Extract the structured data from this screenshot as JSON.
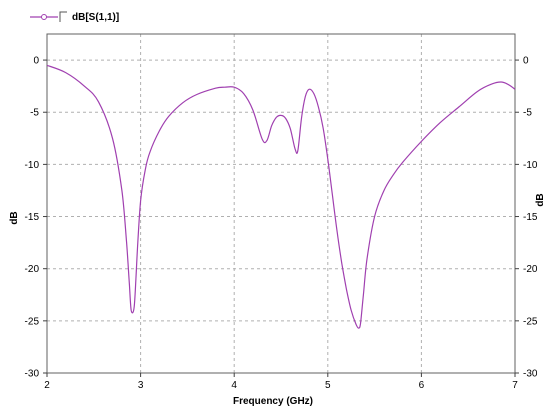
{
  "chart_data": {
    "type": "line",
    "title": "",
    "xlabel": "Frequency (GHz)",
    "ylabel": "dB",
    "ylabel_right": "dB",
    "xlim": [
      2,
      7
    ],
    "ylim": [
      -30,
      2.5
    ],
    "xticks": [
      "2",
      "3",
      "4",
      "5",
      "6",
      "7"
    ],
    "yticks": [
      "0",
      "-5",
      "-10",
      "-15",
      "-20",
      "-25",
      "-30"
    ],
    "grid": true,
    "legend_placement": "top-left",
    "colors": {
      "series": "#a040b0",
      "grid": "#b0b0b0",
      "frame": "#606060"
    },
    "series": [
      {
        "name": "dB[S(1,1)]",
        "x": [
          2.0,
          2.2,
          2.4,
          2.55,
          2.7,
          2.8,
          2.85,
          2.88,
          2.9,
          2.93,
          2.95,
          2.97,
          3.0,
          3.05,
          3.1,
          3.2,
          3.3,
          3.45,
          3.6,
          3.8,
          3.9,
          4.0,
          4.1,
          4.2,
          4.3,
          4.35,
          4.4,
          4.45,
          4.5,
          4.55,
          4.6,
          4.65,
          4.68,
          4.72,
          4.76,
          4.8,
          4.85,
          4.9,
          4.95,
          5.0,
          5.05,
          5.1,
          5.15,
          5.2,
          5.25,
          5.3,
          5.33,
          5.35,
          5.38,
          5.42,
          5.5,
          5.6,
          5.7,
          5.8,
          6.0,
          6.2,
          6.4,
          6.6,
          6.75,
          6.85,
          6.92,
          7.0
        ],
        "y": [
          -0.5,
          -1.2,
          -2.5,
          -4.0,
          -7.5,
          -12.5,
          -17.5,
          -21.5,
          -24.0,
          -23.8,
          -21.0,
          -17.5,
          -13.5,
          -10.5,
          -8.8,
          -6.8,
          -5.4,
          -4.1,
          -3.3,
          -2.7,
          -2.6,
          -2.6,
          -3.2,
          -4.8,
          -7.6,
          -7.7,
          -6.3,
          -5.5,
          -5.3,
          -5.6,
          -6.6,
          -8.5,
          -8.7,
          -5.5,
          -3.5,
          -2.8,
          -3.2,
          -4.5,
          -6.5,
          -9.5,
          -13.0,
          -16.5,
          -19.5,
          -22.0,
          -24.0,
          -25.3,
          -25.7,
          -25.2,
          -22.5,
          -19.0,
          -15.0,
          -12.5,
          -11.0,
          -9.8,
          -7.8,
          -6.0,
          -4.5,
          -3.0,
          -2.3,
          -2.1,
          -2.3,
          -2.8
        ]
      }
    ]
  }
}
